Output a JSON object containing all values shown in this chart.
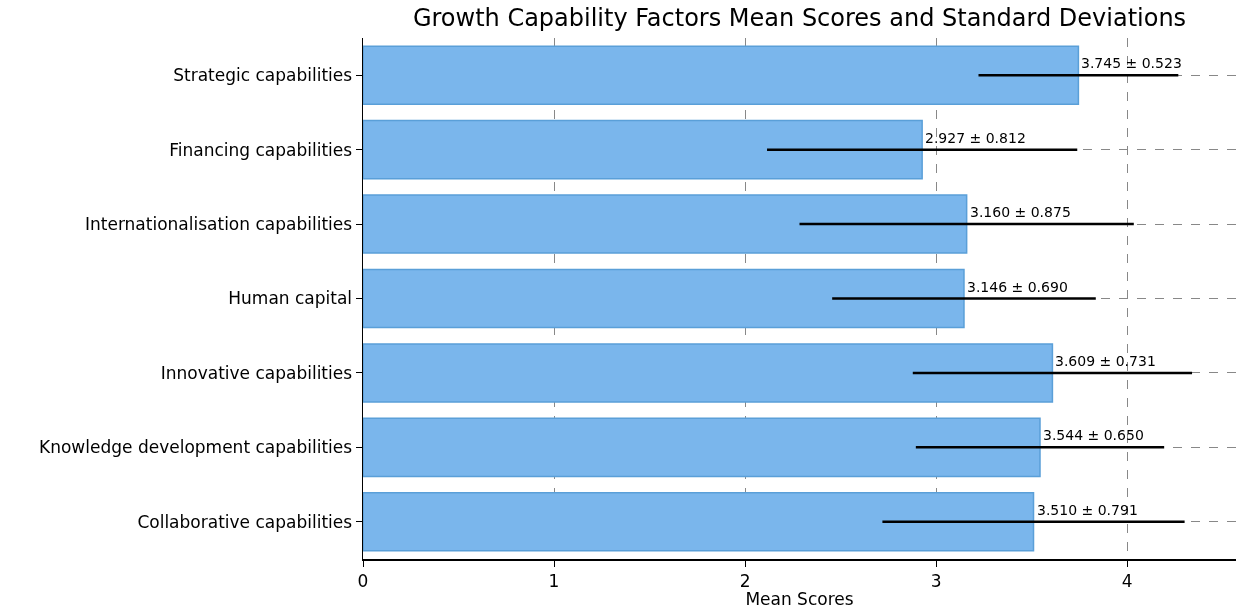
{
  "chart_data": {
    "type": "bar",
    "orientation": "horizontal",
    "title": "Growth Capability Factors Mean Scores and Standard Deviations",
    "xlabel": "Mean Scores",
    "categories": [
      "Strategic capabilities",
      "Financing capabilities",
      "Internationalisation capabilities",
      "Human capital",
      "Innovative capabilities",
      "Knowledge development capabilities",
      "Collaborative capabilities"
    ],
    "values": [
      3.745,
      2.927,
      3.16,
      3.146,
      3.609,
      3.544,
      3.51
    ],
    "errors": [
      0.523,
      0.812,
      0.875,
      0.69,
      0.731,
      0.65,
      0.791
    ],
    "value_labels": [
      "3.745 ± 0.523",
      "2.927 ± 0.812",
      "3.160 ± 0.875",
      "3.146 ± 0.690",
      "3.609 ± 0.731",
      "3.544 ± 0.650",
      "3.510 ± 0.791"
    ],
    "color": "#7ab6ec",
    "xlim": [
      0,
      4.57
    ],
    "xticks": [
      0,
      1,
      2,
      3,
      4
    ],
    "grid": true
  }
}
